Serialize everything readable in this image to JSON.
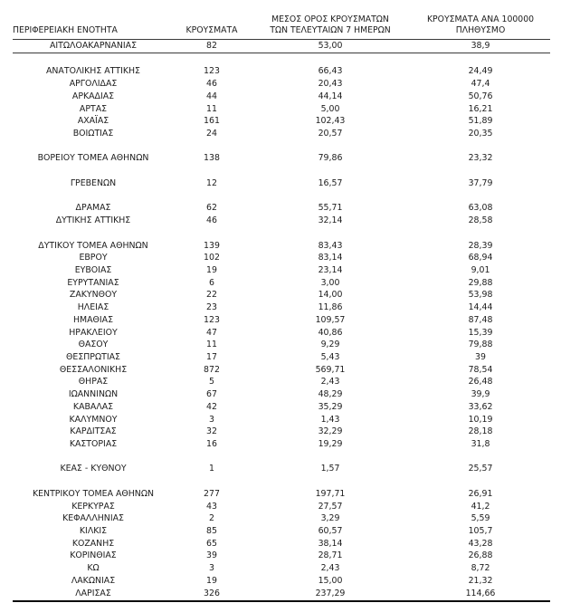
{
  "colors": {
    "text": "#1c1c1c",
    "divider_line": "#3a3a3a",
    "bottom_border": "#0a0a0a",
    "background": "#ffffff"
  },
  "table": {
    "headers": {
      "col1": "ΠΕΡΙΦΕΡΕΙΑΚΗ ΕΝΟΤΗΤΑ",
      "col2": "ΚΡΟΥΣΜΑΤΑ",
      "col3_line1": "ΜΕΣΟΣ ΟΡΟΣ ΚΡΟΥΣΜΑΤΩΝ",
      "col3_line2": "ΤΩΝ ΤΕΛΕΥΤΑΙΩΝ 7 ΗΜΕΡΩΝ",
      "col4_line1": "ΚΡΟΥΣΜΑΤΑ ΑΝΑ 100000",
      "col4_line2": "ΠΛΗΘΥΣΜΟ"
    },
    "rows": [
      {
        "region": "ΑΙΤΩΛΟΑΚΑΡΝΑΝΙΑΣ",
        "cases": "82",
        "avg_7d": "53,00",
        "per_100k": "38,9"
      },
      {
        "divider": true
      },
      {
        "gap": true
      },
      {
        "region": "ΑΝΑΤΟΛΙΚΗΣ ΑΤΤΙΚΗΣ",
        "cases": "123",
        "avg_7d": "66,43",
        "per_100k": "24,49"
      },
      {
        "region": "ΑΡΓΟΛΙΔΑΣ",
        "cases": "46",
        "avg_7d": "20,43",
        "per_100k": "47,4"
      },
      {
        "region": "ΑΡΚΑΔΙΑΣ",
        "cases": "44",
        "avg_7d": "44,14",
        "per_100k": "50,76"
      },
      {
        "region": "ΑΡΤΑΣ",
        "cases": "11",
        "avg_7d": "5,00",
        "per_100k": "16,21"
      },
      {
        "region": "ΑΧΑΪΑΣ",
        "cases": "161",
        "avg_7d": "102,43",
        "per_100k": "51,89"
      },
      {
        "region": "ΒΟΙΩΤΙΑΣ",
        "cases": "24",
        "avg_7d": "20,57",
        "per_100k": "20,35"
      },
      {
        "gap": true
      },
      {
        "region": "ΒΟΡΕΙΟΥ ΤΟΜΕΑ ΑΘΗΝΩΝ",
        "cases": "138",
        "avg_7d": "79,86",
        "per_100k": "23,32"
      },
      {
        "gap": true
      },
      {
        "region": "ΓΡΕΒΕΝΩΝ",
        "cases": "12",
        "avg_7d": "16,57",
        "per_100k": "37,79"
      },
      {
        "gap": true
      },
      {
        "region": "ΔΡΑΜΑΣ",
        "cases": "62",
        "avg_7d": "55,71",
        "per_100k": "63,08"
      },
      {
        "region": "ΔΥΤΙΚΗΣ ΑΤΤΙΚΗΣ",
        "cases": "46",
        "avg_7d": "32,14",
        "per_100k": "28,58"
      },
      {
        "gap": true
      },
      {
        "region": "ΔΥΤΙΚΟΥ ΤΟΜΕΑ ΑΘΗΝΩΝ",
        "cases": "139",
        "avg_7d": "83,43",
        "per_100k": "28,39"
      },
      {
        "region": "ΕΒΡΟΥ",
        "cases": "102",
        "avg_7d": "83,14",
        "per_100k": "68,94"
      },
      {
        "region": "ΕΥΒΟΙΑΣ",
        "cases": "19",
        "avg_7d": "23,14",
        "per_100k": "9,01"
      },
      {
        "region": "ΕΥΡΥΤΑΝΙΑΣ",
        "cases": "6",
        "avg_7d": "3,00",
        "per_100k": "29,88"
      },
      {
        "region": "ΖΑΚΥΝΘΟΥ",
        "cases": "22",
        "avg_7d": "14,00",
        "per_100k": "53,98"
      },
      {
        "region": "ΗΛΕΙΑΣ",
        "cases": "23",
        "avg_7d": "11,86",
        "per_100k": "14,44"
      },
      {
        "region": "ΗΜΑΘΙΑΣ",
        "cases": "123",
        "avg_7d": "109,57",
        "per_100k": "87,48"
      },
      {
        "region": "ΗΡΑΚΛΕΙΟΥ",
        "cases": "47",
        "avg_7d": "40,86",
        "per_100k": "15,39"
      },
      {
        "region": "ΘΑΣΟΥ",
        "cases": "11",
        "avg_7d": "9,29",
        "per_100k": "79,88"
      },
      {
        "region": "ΘΕΣΠΡΩΤΙΑΣ",
        "cases": "17",
        "avg_7d": "5,43",
        "per_100k": "39"
      },
      {
        "region": "ΘΕΣΣΑΛΟΝΙΚΗΣ",
        "cases": "872",
        "avg_7d": "569,71",
        "per_100k": "78,54"
      },
      {
        "region": "ΘΗΡΑΣ",
        "cases": "5",
        "avg_7d": "2,43",
        "per_100k": "26,48"
      },
      {
        "region": "ΙΩΑΝΝΙΝΩΝ",
        "cases": "67",
        "avg_7d": "48,29",
        "per_100k": "39,9"
      },
      {
        "region": "ΚΑΒΑΛΑΣ",
        "cases": "42",
        "avg_7d": "35,29",
        "per_100k": "33,62"
      },
      {
        "region": "ΚΑΛΥΜΝΟΥ",
        "cases": "3",
        "avg_7d": "1,43",
        "per_100k": "10,19"
      },
      {
        "region": "ΚΑΡΔΙΤΣΑΣ",
        "cases": "32",
        "avg_7d": "32,29",
        "per_100k": "28,18"
      },
      {
        "region": "ΚΑΣΤΟΡΙΑΣ",
        "cases": "16",
        "avg_7d": "19,29",
        "per_100k": "31,8"
      },
      {
        "gap": true
      },
      {
        "region": "ΚΕΑΣ - ΚΥΘΝΟΥ",
        "cases": "1",
        "avg_7d": "1,57",
        "per_100k": "25,57"
      },
      {
        "gap": true
      },
      {
        "region": "ΚΕΝΤΡΙΚΟΥ ΤΟΜΕΑ ΑΘΗΝΩΝ",
        "cases": "277",
        "avg_7d": "197,71",
        "per_100k": "26,91"
      },
      {
        "region": "ΚΕΡΚΥΡΑΣ",
        "cases": "43",
        "avg_7d": "27,57",
        "per_100k": "41,2"
      },
      {
        "region": "ΚΕΦΑΛΛΗΝΙΑΣ",
        "cases": "2",
        "avg_7d": "3,29",
        "per_100k": "5,59"
      },
      {
        "region": "ΚΙΛΚΙΣ",
        "cases": "85",
        "avg_7d": "60,57",
        "per_100k": "105,7"
      },
      {
        "region": "ΚΟΖΑΝΗΣ",
        "cases": "65",
        "avg_7d": "38,14",
        "per_100k": "43,28"
      },
      {
        "region": "ΚΟΡΙΝΘΙΑΣ",
        "cases": "39",
        "avg_7d": "28,71",
        "per_100k": "26,88"
      },
      {
        "region": "ΚΩ",
        "cases": "3",
        "avg_7d": "2,43",
        "per_100k": "8,72"
      },
      {
        "region": "ΛΑΚΩΝΙΑΣ",
        "cases": "19",
        "avg_7d": "15,00",
        "per_100k": "21,32"
      },
      {
        "region": "ΛΑΡΙΣΑΣ",
        "cases": "326",
        "avg_7d": "237,29",
        "per_100k": "114,66"
      }
    ]
  }
}
